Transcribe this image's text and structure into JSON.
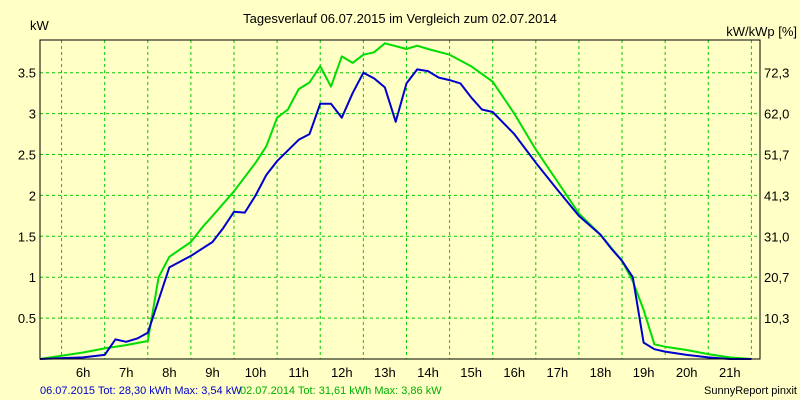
{
  "chart_data": {
    "type": "line",
    "title": "Tagesverlauf 06.07.2015 im Vergleich zum 02.07.2014",
    "ylabel": "kW",
    "y2label": "kW/kWp [%]",
    "xlim": [
      5.5,
      22.2
    ],
    "ylim": [
      0,
      3.9
    ],
    "x_ticks": [
      "6h",
      "7h",
      "8h",
      "9h",
      "10h",
      "11h",
      "12h",
      "13h",
      "14h",
      "15h",
      "16h",
      "17h",
      "18h",
      "19h",
      "20h",
      "21h"
    ],
    "y_ticks": [
      "0.5",
      "1",
      "1.5",
      "2",
      "2.5",
      "3",
      "3.5"
    ],
    "y2_ticks": [
      "10,3",
      "20,7",
      "31,0",
      "41,3",
      "51,7",
      "62,0",
      "72,3"
    ],
    "grid": true,
    "grid_color": "#00cc00",
    "background": "#ffffc6",
    "series": [
      {
        "name": "06.07.2015",
        "color": "#0000cc",
        "x": [
          5.5,
          6.5,
          7.0,
          7.25,
          7.5,
          7.75,
          8.0,
          8.5,
          9.0,
          9.5,
          9.75,
          10.0,
          10.25,
          10.5,
          10.75,
          11.0,
          11.25,
          11.5,
          11.75,
          12.0,
          12.25,
          12.5,
          12.75,
          13.0,
          13.25,
          13.5,
          13.75,
          14.0,
          14.25,
          14.5,
          14.75,
          15.0,
          15.25,
          15.5,
          15.75,
          16.0,
          16.5,
          17.0,
          17.5,
          18.0,
          18.5,
          18.75,
          19.0,
          19.25,
          19.5,
          19.75,
          20.0,
          20.5,
          21.0,
          21.5,
          22.0
        ],
        "y": [
          0.0,
          0.02,
          0.05,
          0.24,
          0.21,
          0.25,
          0.32,
          1.12,
          1.26,
          1.43,
          1.6,
          1.8,
          1.79,
          2.0,
          2.25,
          2.42,
          2.55,
          2.68,
          2.75,
          3.12,
          3.12,
          2.95,
          3.25,
          3.5,
          3.43,
          3.32,
          2.9,
          3.37,
          3.54,
          3.52,
          3.44,
          3.41,
          3.37,
          3.2,
          3.05,
          3.02,
          2.75,
          2.4,
          2.07,
          1.75,
          1.52,
          1.35,
          1.2,
          1.0,
          0.2,
          0.12,
          0.09,
          0.05,
          0.02,
          0.0,
          0.0
        ]
      },
      {
        "name": "02.07.2014",
        "color": "#00dd00",
        "x": [
          5.5,
          6.5,
          7.0,
          7.5,
          8.0,
          8.25,
          8.5,
          9.0,
          9.25,
          9.5,
          10.0,
          10.5,
          10.75,
          11.0,
          11.25,
          11.5,
          11.75,
          12.0,
          12.25,
          12.5,
          12.75,
          13.0,
          13.25,
          13.5,
          14.0,
          14.25,
          14.5,
          15.0,
          15.5,
          16.0,
          16.5,
          17.0,
          17.5,
          18.0,
          18.5,
          19.0,
          19.25,
          19.5,
          19.75,
          20.0,
          20.5,
          21.0,
          21.5,
          22.0
        ],
        "y": [
          0.0,
          0.08,
          0.13,
          0.17,
          0.22,
          1.0,
          1.25,
          1.43,
          1.6,
          1.75,
          2.05,
          2.4,
          2.6,
          2.95,
          3.05,
          3.3,
          3.38,
          3.58,
          3.33,
          3.7,
          3.62,
          3.72,
          3.75,
          3.86,
          3.79,
          3.83,
          3.79,
          3.72,
          3.58,
          3.39,
          3.0,
          2.56,
          2.17,
          1.78,
          1.52,
          1.2,
          0.95,
          0.6,
          0.18,
          0.15,
          0.11,
          0.06,
          0.02,
          0.0
        ]
      }
    ]
  },
  "footer": {
    "series1_text": "06.07.2015 Tot: 28,30 kWh Max: 3,54 kW",
    "series2_text": "02.07.2014 Tot: 31,61 kWh Max: 3,86 kW",
    "credit": "SunnyReport pinxit"
  },
  "colors": {
    "series1": "#0000cc",
    "series2": "#00dd00",
    "grid": "#00cc00"
  }
}
